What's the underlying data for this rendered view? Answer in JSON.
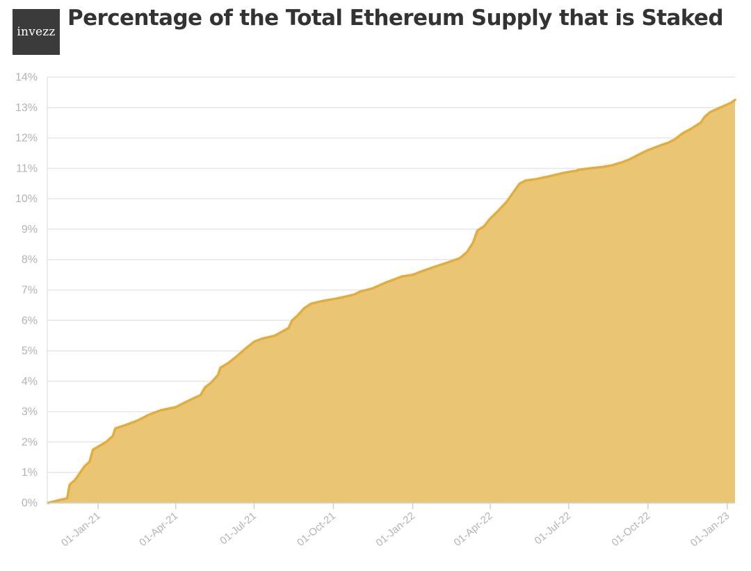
{
  "header": {
    "logo_text": "invezz",
    "title": "Percentage of the Total Ethereum Supply that is Staked"
  },
  "colors": {
    "line": "#e2ad3f",
    "area": "#e9c574",
    "grid": "#e6e6e6",
    "tick_text": "#b3b3b3",
    "title": "#333333",
    "logo_bg": "#3b3b3b"
  },
  "chart_data": {
    "type": "area",
    "title": "Percentage of the Total Ethereum Supply that is Staked",
    "xlabel": "",
    "ylabel": "",
    "ylim": [
      0,
      14
    ],
    "xlim": [
      "2020-11-03",
      "2023-01-10"
    ],
    "grid": true,
    "legend": "none",
    "y_ticks": [
      "0%",
      "1%",
      "2%",
      "3%",
      "4%",
      "5%",
      "6%",
      "7%",
      "8%",
      "9%",
      "10%",
      "11%",
      "12%",
      "13%",
      "14%"
    ],
    "x_ticks": [
      {
        "date": "2021-01-01",
        "label": "01-Jan-21"
      },
      {
        "date": "2021-04-01",
        "label": "01-Apr-21"
      },
      {
        "date": "2021-07-01",
        "label": "01-Jul-21"
      },
      {
        "date": "2021-10-01",
        "label": "01-Oct-21"
      },
      {
        "date": "2022-01-01",
        "label": "01-Jan-22"
      },
      {
        "date": "2022-04-01",
        "label": "01-Apr-22"
      },
      {
        "date": "2022-07-01",
        "label": "01-Jul-22"
      },
      {
        "date": "2022-10-01",
        "label": "01-Oct-22"
      },
      {
        "date": "2023-01-01",
        "label": "01-Jan-23"
      }
    ],
    "series": [
      {
        "points": [
          [
            "2020-11-04",
            0.0
          ],
          [
            "2020-11-18",
            0.1
          ],
          [
            "2020-11-26",
            0.15
          ],
          [
            "2020-11-29",
            0.6
          ],
          [
            "2020-12-05",
            0.75
          ],
          [
            "2020-12-10",
            0.95
          ],
          [
            "2020-12-16",
            1.2
          ],
          [
            "2020-12-22",
            1.35
          ],
          [
            "2020-12-26",
            1.75
          ],
          [
            "2021-01-01",
            1.85
          ],
          [
            "2021-01-10",
            2.0
          ],
          [
            "2021-01-18",
            2.2
          ],
          [
            "2021-01-21",
            2.45
          ],
          [
            "2021-02-01",
            2.55
          ],
          [
            "2021-02-15",
            2.7
          ],
          [
            "2021-03-01",
            2.9
          ],
          [
            "2021-03-15",
            3.05
          ],
          [
            "2021-04-01",
            3.15
          ],
          [
            "2021-04-15",
            3.35
          ],
          [
            "2021-04-30",
            3.55
          ],
          [
            "2021-05-05",
            3.8
          ],
          [
            "2021-05-12",
            3.95
          ],
          [
            "2021-05-20",
            4.2
          ],
          [
            "2021-05-23",
            4.45
          ],
          [
            "2021-06-01",
            4.6
          ],
          [
            "2021-06-10",
            4.8
          ],
          [
            "2021-06-20",
            5.05
          ],
          [
            "2021-07-01",
            5.3
          ],
          [
            "2021-07-10",
            5.4
          ],
          [
            "2021-07-25",
            5.5
          ],
          [
            "2021-08-10",
            5.75
          ],
          [
            "2021-08-14",
            6.0
          ],
          [
            "2021-08-20",
            6.15
          ],
          [
            "2021-08-28",
            6.4
          ],
          [
            "2021-09-05",
            6.55
          ],
          [
            "2021-09-20",
            6.65
          ],
          [
            "2021-10-01",
            6.7
          ],
          [
            "2021-10-10",
            6.75
          ],
          [
            "2021-10-25",
            6.85
          ],
          [
            "2021-11-01",
            6.95
          ],
          [
            "2021-11-15",
            7.05
          ],
          [
            "2021-12-01",
            7.25
          ],
          [
            "2021-12-20",
            7.45
          ],
          [
            "2022-01-01",
            7.5
          ],
          [
            "2022-01-10",
            7.6
          ],
          [
            "2022-01-25",
            7.75
          ],
          [
            "2022-02-10",
            7.9
          ],
          [
            "2022-02-25",
            8.05
          ],
          [
            "2022-03-05",
            8.25
          ],
          [
            "2022-03-12",
            8.55
          ],
          [
            "2022-03-17",
            8.95
          ],
          [
            "2022-03-25",
            9.1
          ],
          [
            "2022-04-01",
            9.35
          ],
          [
            "2022-04-10",
            9.6
          ],
          [
            "2022-04-20",
            9.9
          ],
          [
            "2022-04-30",
            10.3
          ],
          [
            "2022-05-05",
            10.5
          ],
          [
            "2022-05-12",
            10.6
          ],
          [
            "2022-05-25",
            10.65
          ],
          [
            "2022-06-10",
            10.75
          ],
          [
            "2022-06-25",
            10.85
          ],
          [
            "2022-07-05",
            10.9
          ],
          [
            "2022-07-10",
            10.92
          ],
          [
            "2022-07-12",
            10.95
          ],
          [
            "2022-07-25",
            11.0
          ],
          [
            "2022-08-10",
            11.05
          ],
          [
            "2022-08-20",
            11.1
          ],
          [
            "2022-09-01",
            11.2
          ],
          [
            "2022-09-10",
            11.3
          ],
          [
            "2022-09-20",
            11.45
          ],
          [
            "2022-10-01",
            11.6
          ],
          [
            "2022-10-15",
            11.75
          ],
          [
            "2022-10-25",
            11.85
          ],
          [
            "2022-11-01",
            11.95
          ],
          [
            "2022-11-10",
            12.15
          ],
          [
            "2022-11-20",
            12.3
          ],
          [
            "2022-12-01",
            12.5
          ],
          [
            "2022-12-06",
            12.7
          ],
          [
            "2022-12-12",
            12.85
          ],
          [
            "2022-12-20",
            12.95
          ],
          [
            "2022-12-28",
            13.05
          ],
          [
            "2023-01-05",
            13.15
          ],
          [
            "2023-01-10",
            13.25
          ]
        ]
      }
    ]
  }
}
